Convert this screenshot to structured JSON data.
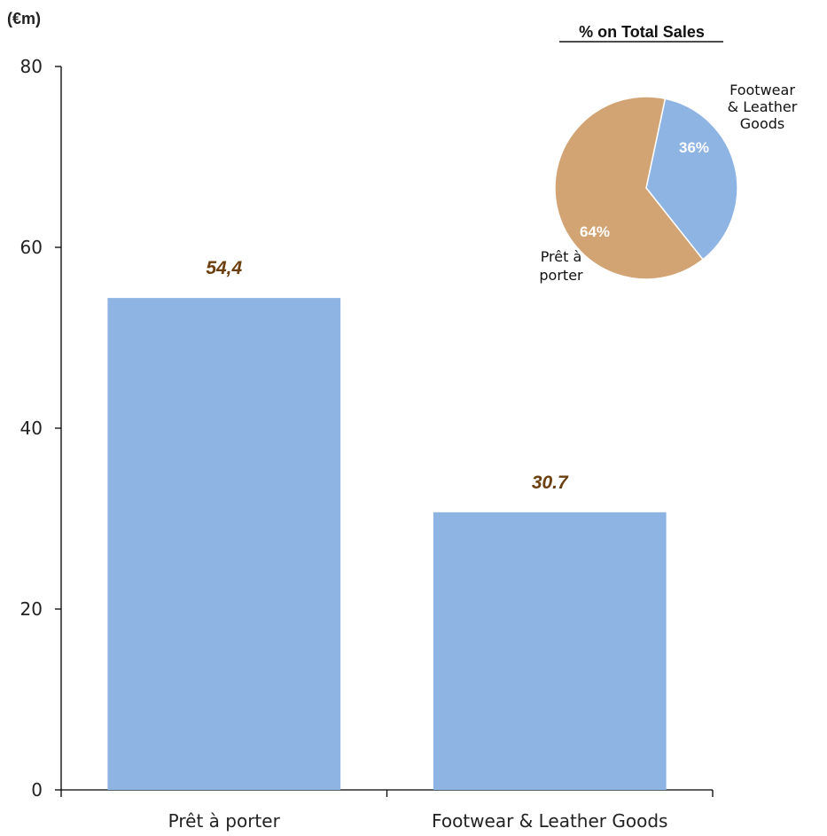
{
  "chart_data": [
    {
      "type": "bar",
      "unit_label": "(€m)",
      "categories": [
        "Prêt à porter",
        "Footwear & Leather Goods"
      ],
      "values": [
        54.4,
        30.7
      ],
      "data_labels": [
        "54,4",
        "30.7"
      ],
      "ylim": [
        0,
        80
      ],
      "yticks": [
        0,
        20,
        40,
        60,
        80
      ],
      "grid": false,
      "bar_color": "#8eb4e3",
      "label_color": "#6b3f0f"
    },
    {
      "type": "pie",
      "title": "% on Total Sales",
      "slices": [
        {
          "name_lines": [
            "Footwear",
            "& Leather",
            "Goods"
          ],
          "value": 36,
          "label": "36%",
          "color": "#8eb4e3"
        },
        {
          "name_lines": [
            "Prêt à",
            "porter"
          ],
          "value": 64,
          "label": "64%",
          "color": "#d2a373"
        }
      ]
    }
  ]
}
